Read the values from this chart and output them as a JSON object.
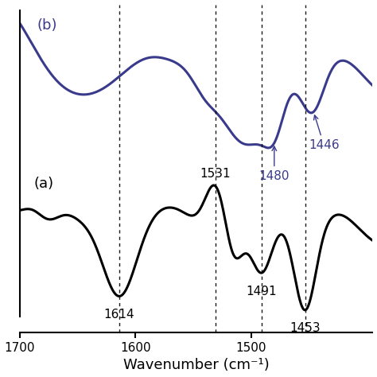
{
  "xlabel": "Wavenumber (cm⁻¹)",
  "xlim_left": 1700,
  "xlim_right": 1395,
  "background_color": "#ffffff",
  "label_a": "(a)",
  "label_b": "(b)",
  "color_a": "#000000",
  "color_b": "#3a3a8c",
  "dashed_lines": [
    1614,
    1531,
    1491,
    1453
  ],
  "xticks": [
    1700,
    1600,
    1500
  ],
  "xtick_labels": [
    "1700",
    "1600",
    "1500"
  ],
  "xlabel_fontsize": 13,
  "tick_fontsize": 11,
  "annot_fontsize": 11,
  "label_fontsize": 13
}
